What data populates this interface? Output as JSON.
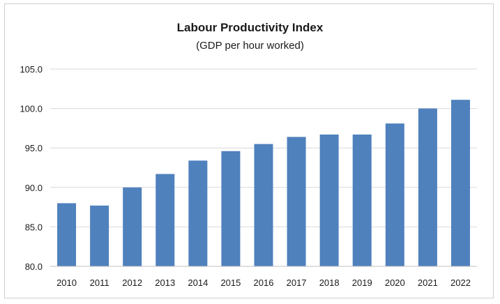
{
  "chart_data": {
    "type": "bar",
    "title": "Labour Productivity Index",
    "subtitle": "(GDP per hour worked)",
    "xlabel": "",
    "ylabel": "",
    "categories": [
      "2010",
      "2011",
      "2012",
      "2013",
      "2014",
      "2015",
      "2016",
      "2017",
      "2018",
      "2019",
      "2020",
      "2021",
      "2022"
    ],
    "values": [
      88.0,
      87.7,
      90.0,
      91.7,
      93.4,
      94.6,
      95.5,
      96.4,
      96.7,
      96.7,
      98.1,
      100.0,
      101.1
    ],
    "ylim": [
      80.0,
      105.0
    ],
    "yticks": [
      "80.0",
      "85.0",
      "90.0",
      "95.0",
      "100.0",
      "105.0"
    ],
    "grid": true,
    "legend": "none",
    "bar_color": "#4f81bd",
    "grid_color": "#d9d9d9"
  }
}
